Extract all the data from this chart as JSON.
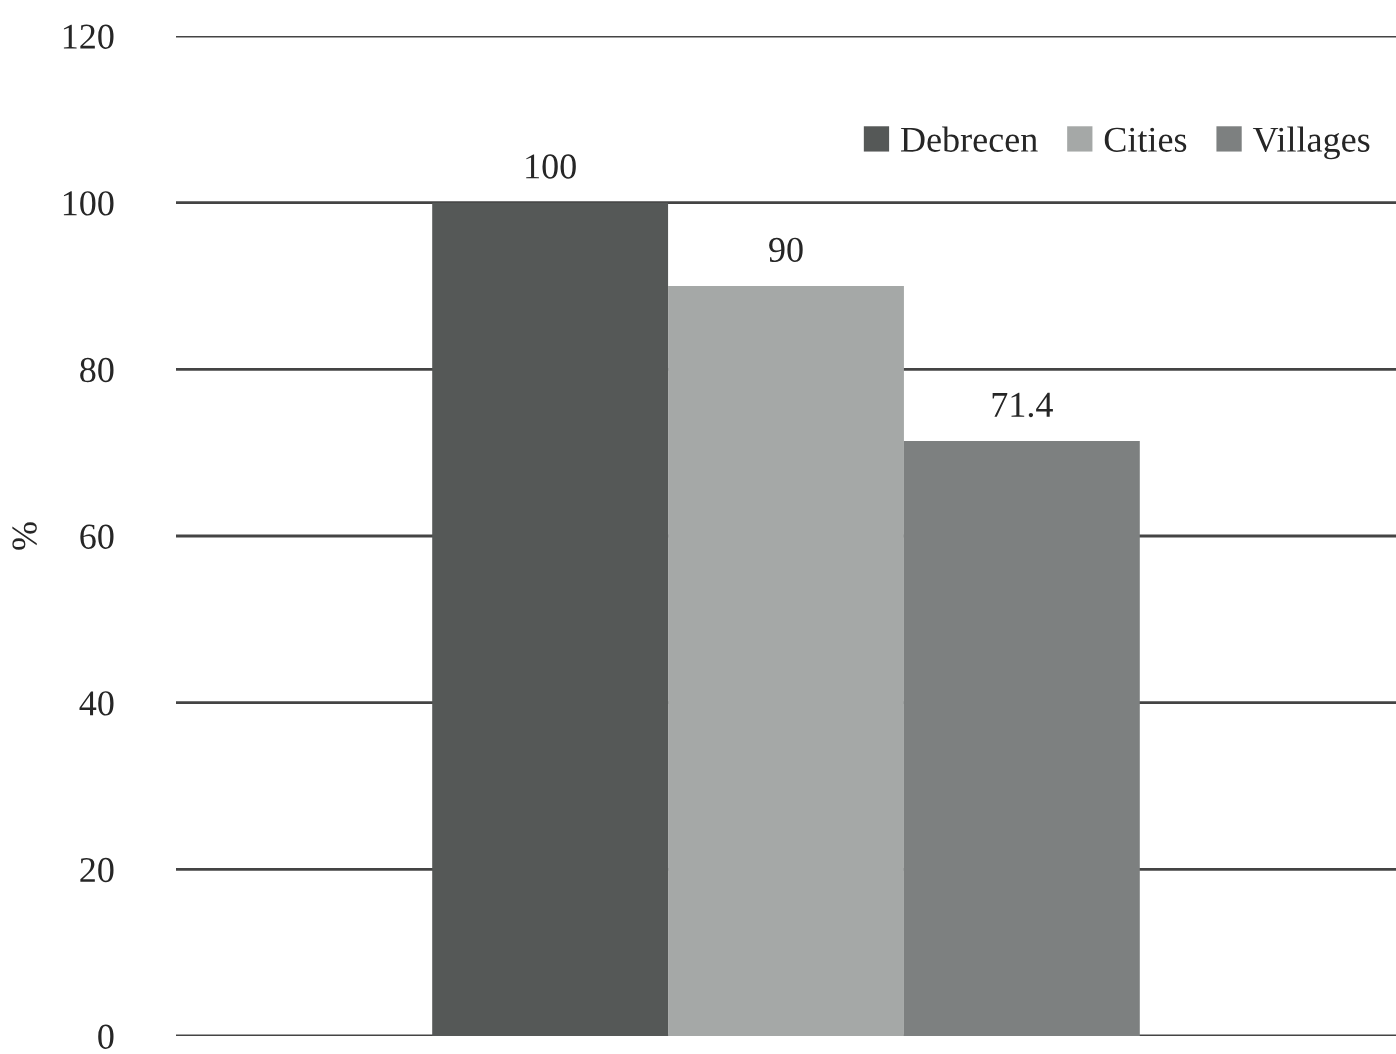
{
  "chart_data": {
    "type": "bar",
    "ylabel": "%",
    "categories": [
      null
    ],
    "series": [
      {
        "name": "Debrecen",
        "color": "#555857",
        "values": [
          100
        ]
      },
      {
        "name": "Cities",
        "color": "#a5a8a7",
        "values": [
          90
        ]
      },
      {
        "name": "Villages",
        "color": "#7d8080",
        "values": [
          71.4
        ]
      }
    ],
    "ylim": [
      0,
      120
    ],
    "yticks": [
      0,
      20,
      40,
      60,
      80,
      100,
      120
    ],
    "grid": "y",
    "legend": "top right",
    "data_labels": true
  }
}
